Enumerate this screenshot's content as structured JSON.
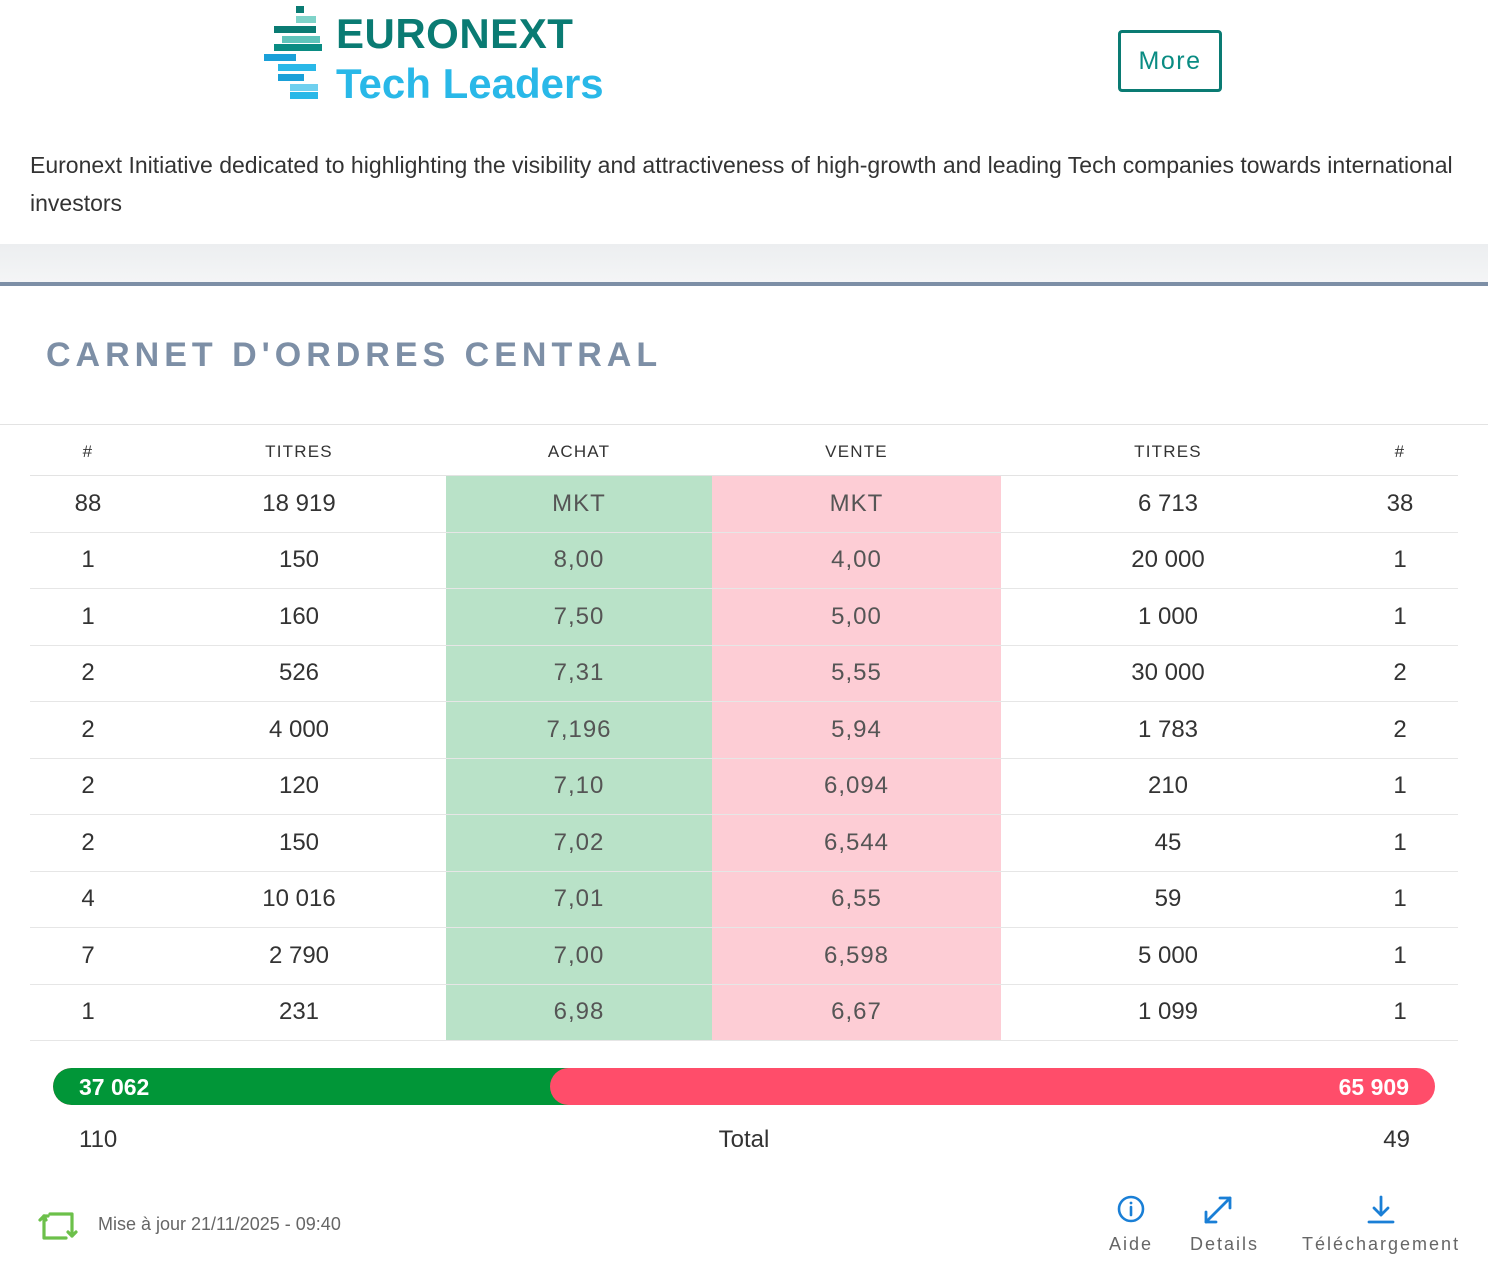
{
  "header": {
    "logo_line1": "EURONEXT",
    "logo_line2": "Tech Leaders",
    "more_label": "More",
    "intro": "Euronext Initiative dedicated to highlighting the visibility and attractiveness of high-growth and leading Tech companies towards international investors"
  },
  "section_title": "CARNET D'ORDRES CENTRAL",
  "table": {
    "columns": [
      "#",
      "TITRES",
      "ACHAT",
      "VENTE",
      "TITRES",
      "#"
    ],
    "rows": [
      [
        "88",
        "18 919",
        "MKT",
        "MKT",
        "6 713",
        "38"
      ],
      [
        "1",
        "150",
        "8,00",
        "4,00",
        "20 000",
        "1"
      ],
      [
        "1",
        "160",
        "7,50",
        "5,00",
        "1 000",
        "1"
      ],
      [
        "2",
        "526",
        "7,31",
        "5,55",
        "30 000",
        "2"
      ],
      [
        "2",
        "4 000",
        "7,196",
        "5,94",
        "1 783",
        "2"
      ],
      [
        "2",
        "120",
        "7,10",
        "6,094",
        "210",
        "1"
      ],
      [
        "2",
        "150",
        "7,02",
        "6,544",
        "45",
        "1"
      ],
      [
        "4",
        "10 016",
        "7,01",
        "6,55",
        "59",
        "1"
      ],
      [
        "7",
        "2 790",
        "7,00",
        "6,598",
        "5 000",
        "1"
      ],
      [
        "1",
        "231",
        "6,98",
        "6,67",
        "1 099",
        "1"
      ]
    ]
  },
  "volume_bar": {
    "buy_label": "37 062",
    "sell_label": "65 909",
    "buy_value": 37062,
    "sell_value": 65909,
    "buy_color": "#019638",
    "sell_color": "#ff4d6a"
  },
  "totals": {
    "left": "110",
    "label": "Total",
    "right": "49"
  },
  "footer": {
    "updated": "Mise à jour 21/11/2025 - 09:40",
    "help_label": "Aide",
    "details_label": "Details",
    "download_label": "Téléchargement"
  },
  "colors": {
    "brand_teal": "#0a7b73",
    "brand_blue": "#29b8e8",
    "action_blue": "#1a7fd6",
    "refresh_green": "#6cc04a"
  }
}
